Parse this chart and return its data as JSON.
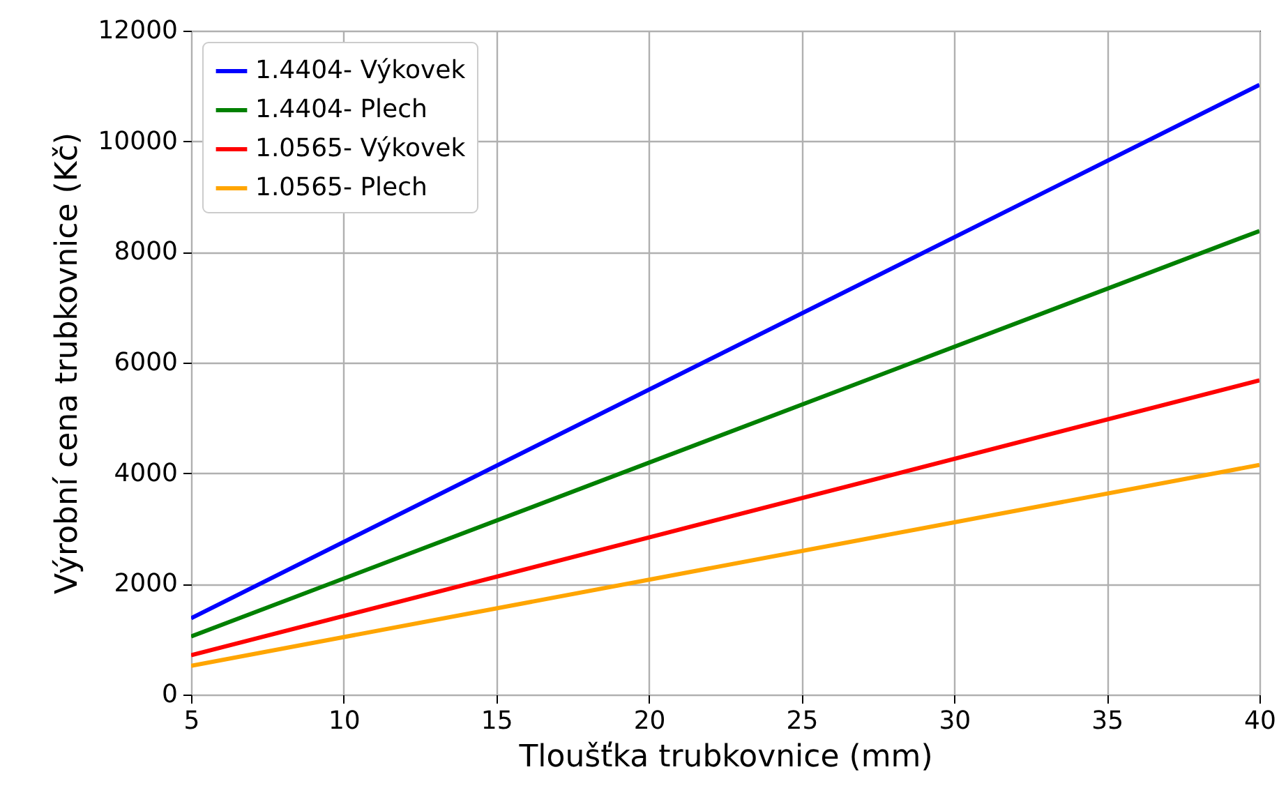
{
  "chart_data": {
    "type": "line",
    "xlabel": "Tloušťka trubkovnice (mm)",
    "ylabel": "Výrobní cena trubkovnice (Kč)",
    "x": [
      5,
      40
    ],
    "series": [
      {
        "name": "1.4404- Výkovek",
        "color": "#0000ff",
        "values": [
          1380,
          11020
        ]
      },
      {
        "name": "1.4404- Plech",
        "color": "#008000",
        "values": [
          1050,
          8380
        ]
      },
      {
        "name": "1.0565- Výkovek",
        "color": "#ff0000",
        "values": [
          710,
          5680
        ]
      },
      {
        "name": "1.0565- Plech",
        "color": "#ffa500",
        "values": [
          520,
          4150
        ]
      }
    ],
    "xlim": [
      5,
      40
    ],
    "xticks": [
      5,
      10,
      15,
      20,
      25,
      30,
      35,
      40
    ],
    "ylim": [
      0,
      12000
    ],
    "yticks": [
      0,
      2000,
      4000,
      6000,
      8000,
      10000,
      12000
    ],
    "grid": true,
    "legend": "top left",
    "line_style": "solid"
  }
}
